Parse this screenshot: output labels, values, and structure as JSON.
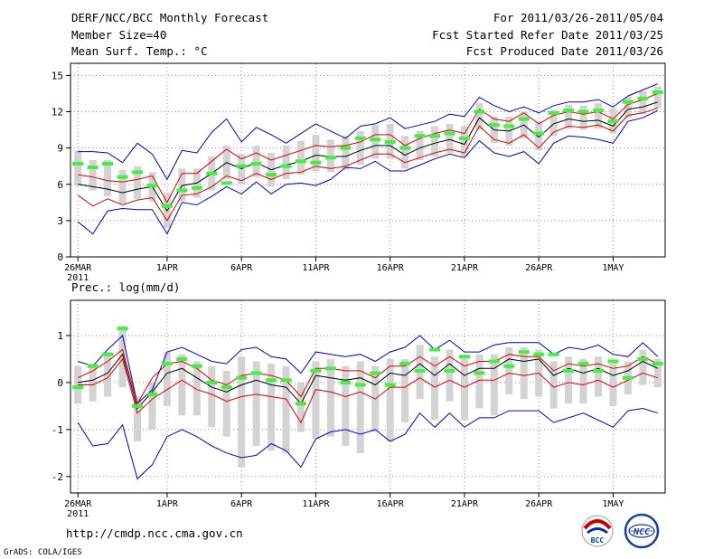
{
  "header": {
    "title": "DERF/NCC/BCC Monthly Forecast",
    "member_size": "Member Size=40",
    "variable": "Mean Surf. Temp.: °C",
    "forecast_period": "For 2011/03/26-2011/05/04",
    "start_refer_date": "Fcst Started Refer Date 2011/03/25",
    "produced_date": "Fcst Produced Date 2011/03/26"
  },
  "footer": {
    "url": "http://cmdp.ncc.cma.gov.cn",
    "credit": "GrADS: COLA/IGES",
    "logo_bcc_text": "BCC",
    "logo_ncc_text": "NCC"
  },
  "colors": {
    "frame": "#000000",
    "grid": "#888888",
    "box": "#d3d3d3",
    "ensemble_min_max": "#0000cc",
    "std_band": "#dd0000",
    "mean": "#000000",
    "median_marker": "#44ee44"
  },
  "chart_data": [
    {
      "type": "line",
      "title": "Mean Surf. Temp.: °C",
      "xlabel": "",
      "ylabel": "°C",
      "grid": true,
      "ylim": [
        0,
        16
      ],
      "yticks": [
        0,
        3,
        6,
        9,
        12,
        15
      ],
      "x_day_range": [
        -0.5,
        39.5
      ],
      "xticks": [
        {
          "day": 0,
          "label": "26MAR",
          "sub": "2011"
        },
        {
          "day": 6,
          "label": "1APR"
        },
        {
          "day": 11,
          "label": "6APR"
        },
        {
          "day": 16,
          "label": "11APR"
        },
        {
          "day": 21,
          "label": "16APR"
        },
        {
          "day": 26,
          "label": "21APR"
        },
        {
          "day": 31,
          "label": "26APR"
        },
        {
          "day": 36,
          "label": "1MAY"
        }
      ],
      "series": [
        {
          "name": "max",
          "values": [
            8.7,
            8.7,
            8.6,
            7.8,
            9.4,
            8.5,
            6.4,
            8.8,
            8.6,
            10.3,
            11.4,
            9.5,
            10.7,
            10.1,
            9.4,
            10.2,
            11.0,
            10.4,
            9.8,
            10.8,
            11.0,
            11.5,
            10.6,
            10.9,
            11.2,
            11.8,
            11.6,
            13.2,
            12.5,
            12.0,
            12.4,
            11.9,
            12.5,
            12.8,
            12.8,
            13.0,
            12.4,
            13.3,
            13.8,
            14.3
          ]
        },
        {
          "name": "std_upper",
          "values": [
            6.8,
            6.6,
            6.3,
            6.2,
            6.4,
            6.7,
            4.5,
            6.9,
            6.9,
            7.9,
            8.9,
            8.1,
            8.6,
            8.0,
            8.4,
            8.8,
            9.2,
            9.1,
            9.2,
            9.5,
            10.1,
            10.1,
            9.2,
            9.8,
            10.2,
            10.5,
            10.2,
            12.2,
            11.4,
            11.2,
            11.9,
            11.0,
            11.7,
            12.0,
            11.8,
            12.0,
            11.4,
            12.6,
            13.0,
            13.5
          ]
        },
        {
          "name": "mean",
          "values": [
            6.0,
            5.8,
            5.6,
            5.3,
            5.6,
            5.8,
            3.8,
            5.9,
            6.1,
            6.9,
            7.8,
            7.3,
            7.8,
            7.2,
            7.6,
            7.9,
            8.4,
            8.3,
            8.3,
            8.8,
            9.2,
            9.2,
            8.4,
            9.0,
            9.4,
            9.7,
            9.3,
            11.5,
            10.5,
            10.4,
            10.9,
            9.9,
            11.0,
            11.4,
            11.2,
            11.3,
            10.8,
            12.2,
            12.4,
            12.8
          ]
        },
        {
          "name": "std_lower",
          "values": [
            5.1,
            4.2,
            4.8,
            4.3,
            4.7,
            4.9,
            3.0,
            5.1,
            5.2,
            5.8,
            6.7,
            6.3,
            6.9,
            6.4,
            6.9,
            7.0,
            7.5,
            7.3,
            7.5,
            8.0,
            8.5,
            8.5,
            7.8,
            8.2,
            8.6,
            8.9,
            8.6,
            10.8,
            9.7,
            9.4,
            10.1,
            9.0,
            10.3,
            10.8,
            10.7,
            10.9,
            10.4,
            11.7,
            11.9,
            12.3
          ]
        },
        {
          "name": "min",
          "values": [
            2.9,
            1.9,
            3.8,
            4.0,
            3.9,
            3.9,
            1.9,
            4.5,
            4.3,
            5.0,
            5.8,
            5.2,
            6.2,
            5.2,
            6.0,
            6.1,
            5.9,
            6.4,
            7.4,
            7.3,
            7.9,
            7.1,
            7.1,
            7.6,
            8.1,
            8.5,
            8.2,
            9.6,
            8.6,
            8.3,
            8.7,
            7.7,
            9.4,
            10.0,
            9.9,
            9.7,
            9.4,
            11.2,
            11.5,
            12.1
          ]
        },
        {
          "name": "box_top",
          "values": [
            8.8,
            8.0,
            8.0,
            7.2,
            7.5,
            7.0,
            5.3,
            7.3,
            7.3,
            8.3,
            9.2,
            8.5,
            9.2,
            8.6,
            9.2,
            9.6,
            10.1,
            9.7,
            10.0,
            10.4,
            10.9,
            11.0,
            10.0,
            10.4,
            10.8,
            11.0,
            10.8,
            12.7,
            11.6,
            11.6,
            12.0,
            11.2,
            12.1,
            12.6,
            12.5,
            12.7,
            12.3,
            13.2,
            13.7,
            14.1
          ]
        },
        {
          "name": "box_bottom",
          "values": [
            5.9,
            5.5,
            5.0,
            4.4,
            4.8,
            4.6,
            2.4,
            4.6,
            4.9,
            5.5,
            6.4,
            6.0,
            6.6,
            5.8,
            6.4,
            6.8,
            7.1,
            7.0,
            7.2,
            7.6,
            8.1,
            8.1,
            7.3,
            8.0,
            8.3,
            8.6,
            8.3,
            10.5,
            9.4,
            9.2,
            9.8,
            8.8,
            10.0,
            10.6,
            10.5,
            10.6,
            10.2,
            11.5,
            11.8,
            12.3
          ]
        },
        {
          "name": "median",
          "values": [
            7.7,
            7.4,
            7.7,
            6.6,
            7.0,
            5.9,
            4.2,
            5.5,
            5.7,
            6.9,
            6.1,
            7.5,
            7.7,
            6.8,
            7.5,
            7.9,
            7.8,
            8.2,
            9.0,
            9.8,
            9.7,
            9.5,
            9.0,
            10.0,
            10.0,
            10.2,
            9.8,
            12.0,
            10.9,
            10.8,
            11.4,
            10.2,
            11.9,
            12.1,
            12.0,
            12.1,
            11.2,
            12.8,
            13.1,
            13.6
          ]
        }
      ]
    },
    {
      "type": "line",
      "title": "Prec.: log(mm/d)",
      "xlabel": "",
      "ylabel": "log(mm/d)",
      "grid": true,
      "ylim": [
        -2.35,
        1.75
      ],
      "yticks": [
        -2,
        -1,
        0,
        1
      ],
      "x_day_range": [
        -0.5,
        39.5
      ],
      "xticks": [
        {
          "day": 0,
          "label": "26MAR",
          "sub": "2011"
        },
        {
          "day": 6,
          "label": "1APR"
        },
        {
          "day": 11,
          "label": "6APR"
        },
        {
          "day": 16,
          "label": "11APR"
        },
        {
          "day": 21,
          "label": "16APR"
        },
        {
          "day": 26,
          "label": "21APR"
        },
        {
          "day": 31,
          "label": "26APR"
        },
        {
          "day": 36,
          "label": "1MAY"
        }
      ],
      "series": [
        {
          "name": "max",
          "values": [
            0.45,
            0.35,
            0.7,
            1.0,
            -0.45,
            -0.15,
            0.65,
            0.75,
            0.6,
            0.45,
            0.4,
            0.7,
            0.75,
            0.55,
            0.5,
            0.2,
            0.65,
            0.6,
            0.55,
            0.6,
            0.45,
            0.65,
            0.75,
            1.0,
            0.7,
            0.9,
            0.65,
            0.65,
            0.8,
            0.85,
            0.85,
            0.85,
            0.6,
            0.75,
            0.7,
            0.8,
            0.6,
            0.55,
            0.85,
            0.55
          ]
        },
        {
          "name": "std_upper",
          "values": [
            0.1,
            0.25,
            0.45,
            0.7,
            -0.45,
            0.1,
            0.4,
            0.45,
            0.3,
            0.05,
            -0.05,
            0.15,
            0.2,
            0.15,
            0.05,
            -0.3,
            0.3,
            0.3,
            0.25,
            0.25,
            0.1,
            0.35,
            0.35,
            0.55,
            0.35,
            0.55,
            0.35,
            0.45,
            0.45,
            0.6,
            0.55,
            0.55,
            0.25,
            0.4,
            0.35,
            0.4,
            0.3,
            0.35,
            0.55,
            0.4
          ]
        },
        {
          "name": "mean",
          "values": [
            0.0,
            0.05,
            0.2,
            0.6,
            -0.55,
            -0.2,
            0.2,
            0.3,
            0.1,
            -0.1,
            -0.2,
            -0.05,
            0.05,
            -0.05,
            -0.1,
            -0.45,
            0.15,
            0.1,
            0.05,
            0.1,
            -0.05,
            0.2,
            0.15,
            0.4,
            0.15,
            0.4,
            0.15,
            0.3,
            0.3,
            0.5,
            0.45,
            0.5,
            0.15,
            0.3,
            0.2,
            0.3,
            0.15,
            0.25,
            0.45,
            0.3
          ]
        },
        {
          "name": "std_lower",
          "values": [
            -0.05,
            -0.05,
            0.1,
            0.5,
            -0.65,
            -0.35,
            -0.15,
            0.05,
            -0.15,
            -0.25,
            -0.4,
            -0.3,
            -0.25,
            -0.3,
            -0.35,
            -0.85,
            -0.15,
            -0.2,
            -0.3,
            -0.2,
            -0.35,
            -0.1,
            -0.1,
            0.1,
            -0.1,
            0.05,
            -0.1,
            0.05,
            0.05,
            0.2,
            0.15,
            0.2,
            -0.1,
            0.0,
            -0.05,
            0.05,
            -0.1,
            0.05,
            0.2,
            0.1
          ]
        },
        {
          "name": "min",
          "values": [
            -0.85,
            -1.35,
            -1.3,
            -0.9,
            -2.05,
            -1.75,
            -1.15,
            -1.0,
            -1.15,
            -1.35,
            -1.5,
            -1.6,
            -1.55,
            -1.3,
            -1.45,
            -1.8,
            -1.2,
            -1.05,
            -1.0,
            -1.1,
            -1.0,
            -1.25,
            -1.1,
            -0.65,
            -0.95,
            -0.65,
            -0.95,
            -0.75,
            -0.75,
            -0.6,
            -0.6,
            -0.6,
            -0.85,
            -0.75,
            -0.65,
            -0.8,
            -0.95,
            -0.6,
            -0.55,
            -0.65
          ]
        },
        {
          "name": "box_top",
          "values": [
            0.35,
            0.4,
            0.65,
            1.2,
            -0.3,
            0.0,
            0.65,
            0.6,
            0.45,
            0.35,
            0.25,
            0.55,
            0.45,
            0.4,
            0.35,
            0.0,
            0.45,
            0.5,
            0.35,
            0.45,
            0.35,
            0.5,
            0.5,
            0.8,
            0.55,
            0.7,
            0.5,
            0.6,
            0.6,
            0.75,
            0.75,
            0.7,
            0.45,
            0.55,
            0.5,
            0.55,
            0.4,
            0.45,
            0.7,
            0.5
          ]
        },
        {
          "name": "box_bottom",
          "values": [
            -0.45,
            -0.4,
            -0.3,
            -0.1,
            -1.25,
            -1.0,
            -0.5,
            -0.7,
            -0.7,
            -0.95,
            -1.15,
            -1.8,
            -1.35,
            -1.45,
            -1.5,
            -1.05,
            -1.2,
            -1.15,
            -1.35,
            -1.5,
            -1.05,
            -1.25,
            -0.85,
            -0.35,
            -0.8,
            -0.4,
            -0.8,
            -0.55,
            -0.7,
            -0.25,
            -0.35,
            -0.3,
            -0.55,
            -0.45,
            -0.45,
            -0.3,
            -0.5,
            -0.25,
            -0.05,
            -0.1
          ]
        },
        {
          "name": "median",
          "values": [
            -0.1,
            0.35,
            0.6,
            1.15,
            -0.5,
            -0.25,
            0.4,
            0.5,
            0.35,
            0.0,
            -0.1,
            0.1,
            0.2,
            0.05,
            0.05,
            -0.45,
            0.25,
            0.3,
            0.0,
            -0.05,
            0.2,
            -0.05,
            0.4,
            0.25,
            0.7,
            0.25,
            0.55,
            0.2,
            0.45,
            0.35,
            0.65,
            0.6,
            0.6,
            0.25,
            0.4,
            0.25,
            0.45,
            0.1,
            0.5,
            0.4
          ]
        }
      ]
    }
  ]
}
